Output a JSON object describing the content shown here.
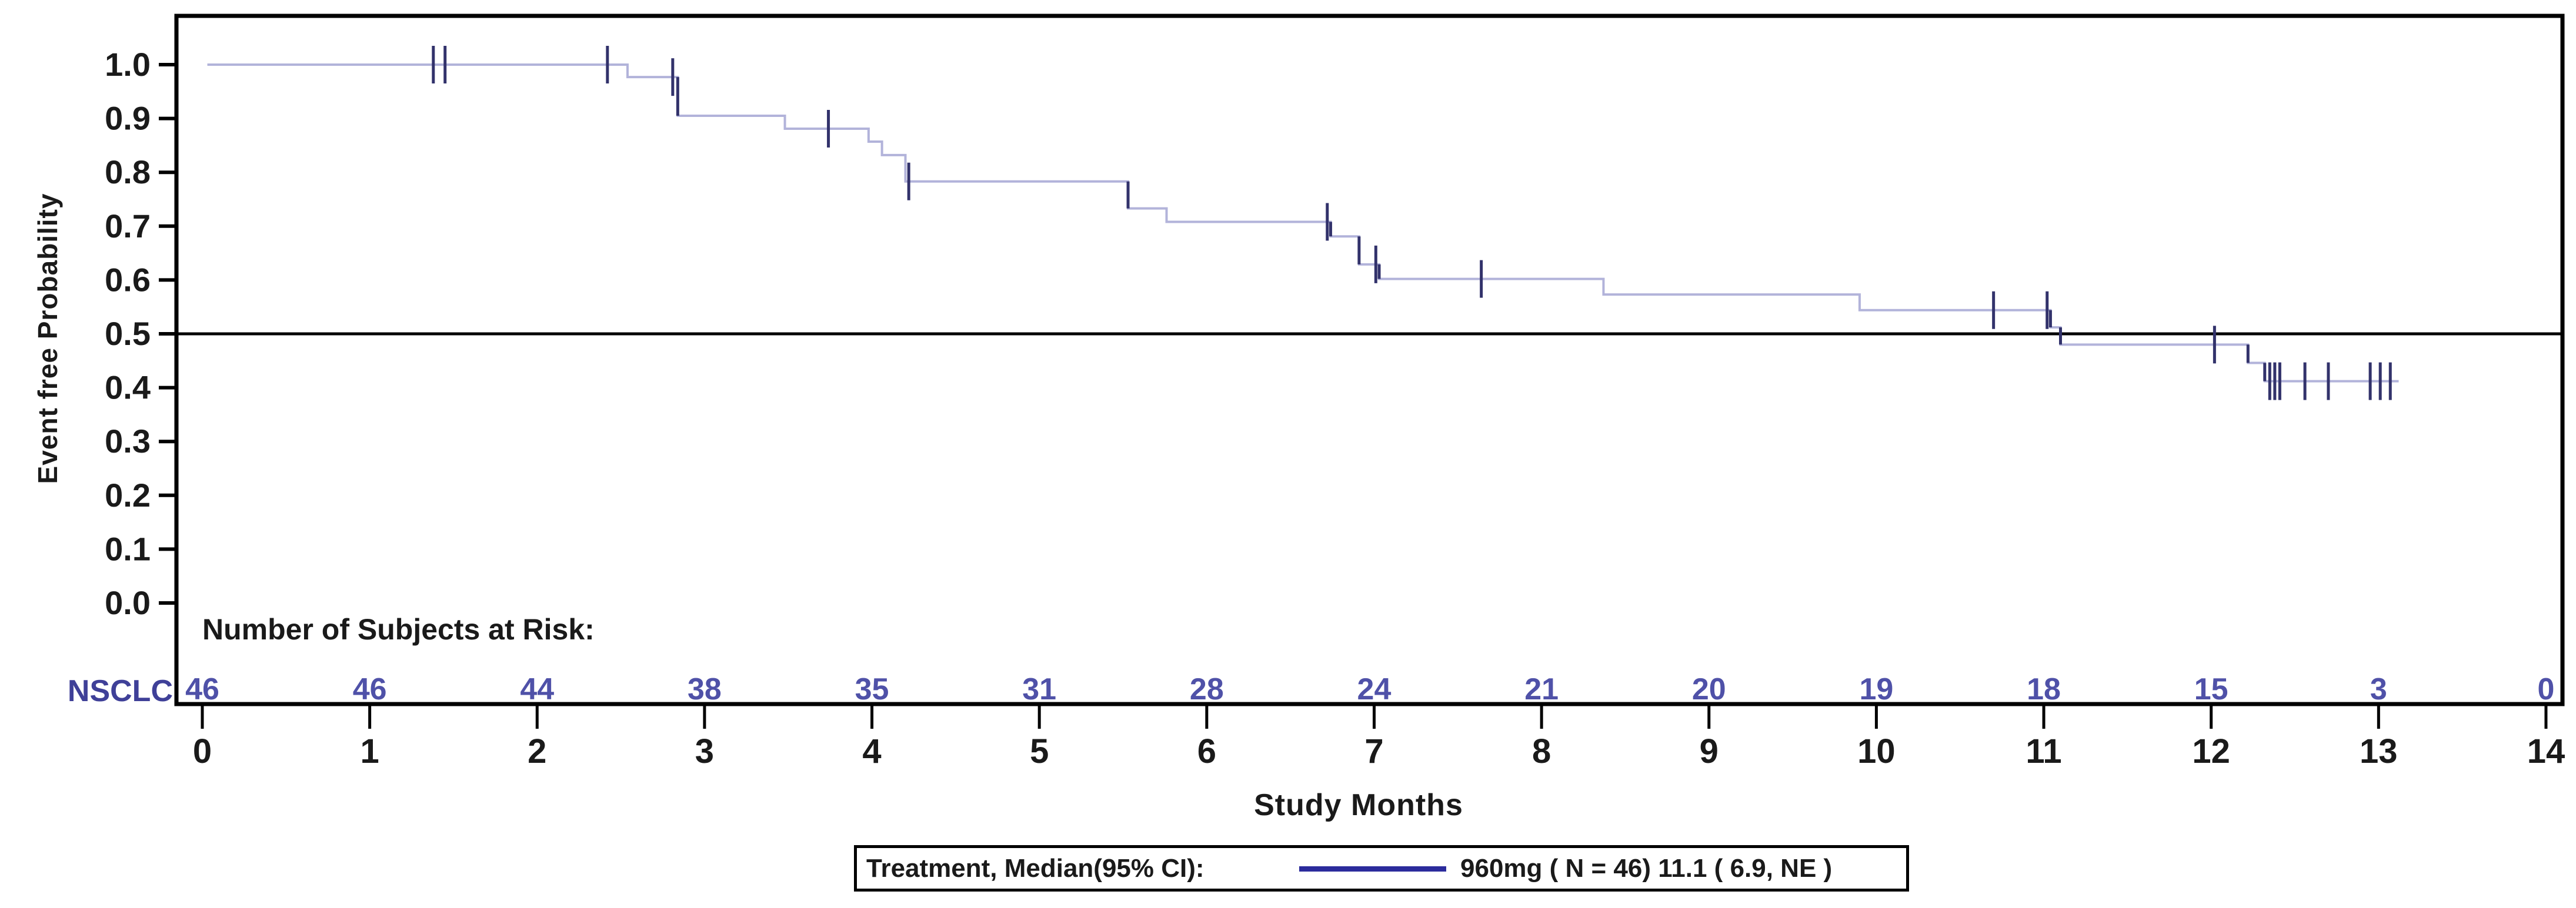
{
  "page": {
    "background": "#ffffff"
  },
  "chart_data": {
    "type": "line",
    "variant": "kaplan-meier-step",
    "title": "",
    "xlabel": "Study Months",
    "ylabel": "Event free Probability",
    "xlim": [
      0,
      14
    ],
    "ylim": [
      0.0,
      1.0
    ],
    "xtick_labels": [
      "0",
      "1",
      "2",
      "3",
      "4",
      "5",
      "6",
      "7",
      "8",
      "9",
      "10",
      "11",
      "12",
      "13",
      "14"
    ],
    "xtick_values": [
      0,
      1,
      2,
      3,
      4,
      5,
      6,
      7,
      8,
      9,
      10,
      11,
      12,
      13,
      14
    ],
    "ytick_labels": [
      "1.0",
      "0.9",
      "0.8",
      "0.7",
      "0.6",
      "0.5",
      "0.4",
      "0.3",
      "0.2",
      "0.1",
      "0.0"
    ],
    "ytick_values": [
      1.0,
      0.9,
      0.8,
      0.7,
      0.6,
      0.5,
      0.4,
      0.3,
      0.2,
      0.1,
      0.0
    ],
    "grid": "off",
    "reference_line_y": 0.5,
    "legend_position": "bottom-center",
    "series": [
      {
        "name": "960mg",
        "n": 46,
        "median": "11.1",
        "ci95": "( 6.9, NE )",
        "line_color": "#b2b3da",
        "dark_color": "#32326b",
        "start": [
          0.03,
          1.0
        ],
        "steps": [
          [
            2.54,
            0.977
          ],
          [
            2.84,
            0.905
          ],
          [
            3.48,
            0.881
          ],
          [
            3.98,
            0.857
          ],
          [
            4.06,
            0.832
          ],
          [
            4.2,
            0.783
          ],
          [
            5.53,
            0.733
          ],
          [
            5.76,
            0.708
          ],
          [
            6.74,
            0.681
          ],
          [
            6.91,
            0.629
          ],
          [
            7.03,
            0.602
          ],
          [
            8.37,
            0.573
          ],
          [
            9.9,
            0.544
          ],
          [
            11.04,
            0.512
          ],
          [
            11.1,
            0.48
          ],
          [
            12.22,
            0.446
          ],
          [
            12.32,
            0.412
          ]
        ],
        "end_x": 13.12,
        "dark_step_x": [
          2.84,
          5.53,
          6.74,
          6.91,
          7.03,
          11.04,
          11.1,
          12.22,
          12.32
        ],
        "censor_marks": [
          [
            1.38,
            1.0
          ],
          [
            1.45,
            1.0
          ],
          [
            2.42,
            1.0
          ],
          [
            2.81,
            0.977
          ],
          [
            3.74,
            0.881
          ],
          [
            4.22,
            0.783
          ],
          [
            6.72,
            0.708
          ],
          [
            7.01,
            0.629
          ],
          [
            7.64,
            0.602
          ],
          [
            10.7,
            0.544
          ],
          [
            11.02,
            0.544
          ],
          [
            12.02,
            0.48
          ],
          [
            12.35,
            0.412
          ],
          [
            12.38,
            0.412
          ],
          [
            12.41,
            0.412
          ],
          [
            12.56,
            0.412
          ],
          [
            12.7,
            0.412
          ],
          [
            12.95,
            0.412
          ],
          [
            13.01,
            0.412
          ],
          [
            13.07,
            0.412
          ]
        ]
      }
    ],
    "risk_table": {
      "header": "Number of Subjects at Risk:",
      "row_label": "NSCLC",
      "times": [
        0,
        1,
        2,
        3,
        4,
        5,
        6,
        7,
        8,
        9,
        10,
        11,
        12,
        13,
        14
      ],
      "values": [
        "46",
        "46",
        "44",
        "38",
        "35",
        "31",
        "28",
        "24",
        "21",
        "20",
        "19",
        "18",
        "15",
        "3",
        "0"
      ],
      "value_color": "#4f51a8",
      "label_color": "#3f4098"
    },
    "legend": {
      "label": "Treatment, Median(95% CI):",
      "entry": "960mg ( N = 46) 11.1 ( 6.9, NE )",
      "line_color": "#2b2b9c"
    },
    "colors": {
      "frame": "#000000",
      "reference_line": "#000000",
      "tick_text": "#1a1a1a",
      "curve": "#b2b3da",
      "censor": "#32326b"
    }
  }
}
